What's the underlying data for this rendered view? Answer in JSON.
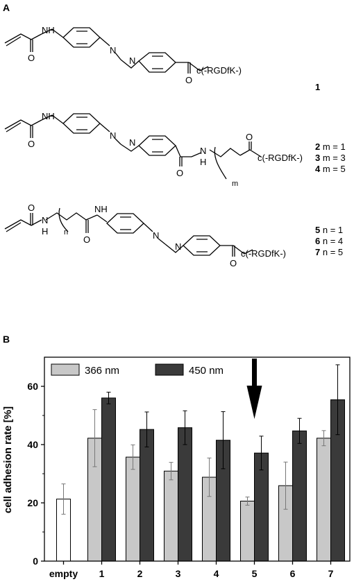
{
  "panel_a": {
    "label": "A",
    "structures": [
      {
        "substituent": "c(-RGDfK-)",
        "ids": [
          {
            "num": "1",
            "cond": ""
          }
        ]
      },
      {
        "substituent": "c(-RGDfK-)",
        "subscript": "m",
        "ids": [
          {
            "num": "2",
            "cond": " m = 1"
          },
          {
            "num": "3",
            "cond": " m = 3"
          },
          {
            "num": "4",
            "cond": " m = 5"
          }
        ]
      },
      {
        "substituent": "c(-RGDfK-)",
        "subscript": "n",
        "ids": [
          {
            "num": "5",
            "cond": " n = 1"
          },
          {
            "num": "6",
            "cond": " n = 4"
          },
          {
            "num": "7",
            "cond": " n = 5"
          }
        ]
      }
    ],
    "atoms": {
      "nh": "NH",
      "n": "N",
      "h": "H",
      "o": "O"
    }
  },
  "panel_b": {
    "label": "B"
  },
  "chart_data": {
    "type": "bar",
    "ylabel": "cell adhesion rate [%]",
    "xlabel": "",
    "ylim": [
      0,
      70
    ],
    "yticks": [
      0,
      20,
      40,
      60
    ],
    "categories": [
      "empty",
      "1",
      "2",
      "3",
      "4",
      "5",
      "6",
      "7"
    ],
    "series": [
      {
        "name": "",
        "color": "#ffffff",
        "values": [
          21.3,
          null,
          null,
          null,
          null,
          null,
          null,
          null
        ],
        "errors": [
          5.2,
          null,
          null,
          null,
          null,
          null,
          null,
          null
        ]
      },
      {
        "name": "366 nm",
        "color": "#c8c8c8",
        "values": [
          null,
          42.2,
          35.7,
          30.9,
          28.8,
          20.6,
          25.9,
          42.2
        ],
        "errors": [
          null,
          9.8,
          4.2,
          3.0,
          6.6,
          1.4,
          8.1,
          2.6
        ]
      },
      {
        "name": "450 nm",
        "color": "#3a3a3a",
        "values": [
          null,
          56.0,
          45.2,
          45.8,
          41.5,
          37.1,
          44.7,
          55.4
        ],
        "errors": [
          null,
          2.0,
          6.0,
          5.8,
          9.8,
          5.8,
          4.3,
          12.0
        ]
      }
    ],
    "legend": "top-left",
    "annotation": {
      "type": "arrow",
      "category": "5"
    }
  }
}
